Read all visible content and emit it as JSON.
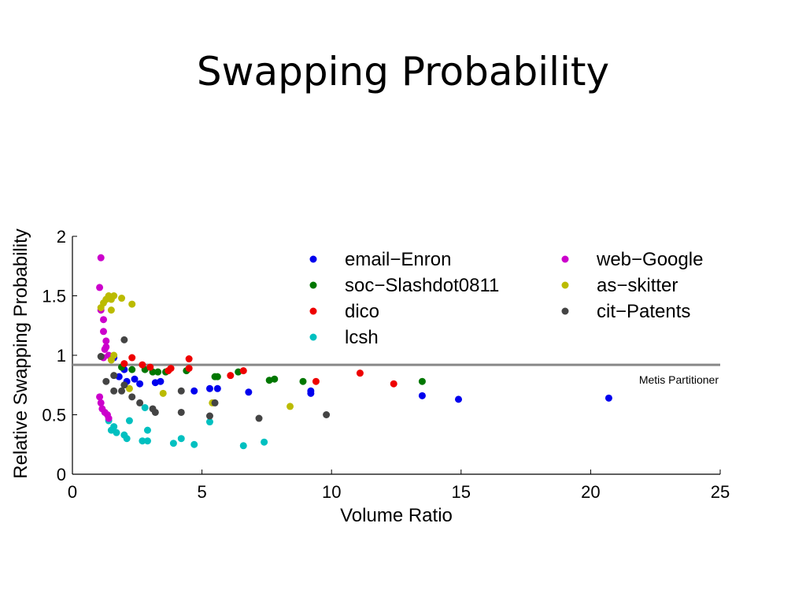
{
  "slide": {
    "title": "Swapping Probability"
  },
  "chart_data": {
    "type": "scatter",
    "title": "",
    "xlabel": "Volume Ratio",
    "ylabel": "Relative Swapping Probability",
    "xlim": [
      0,
      25
    ],
    "ylim": [
      0,
      2
    ],
    "xticks": [
      "0",
      "5",
      "10",
      "15",
      "20",
      "25"
    ],
    "yticks": [
      "0",
      "0.5",
      "1",
      "1.5",
      "2"
    ],
    "grid": false,
    "legend_position": "top-right",
    "reference_line": {
      "y": 0.92,
      "label": "Metis Partitioner",
      "color": "#888888"
    },
    "series": [
      {
        "name": "email−Enron",
        "color": "#0000ee",
        "points": [
          [
            1.6,
            0.98
          ],
          [
            1.8,
            0.82
          ],
          [
            2.0,
            0.88
          ],
          [
            2.1,
            0.78
          ],
          [
            2.4,
            0.8
          ],
          [
            2.6,
            0.76
          ],
          [
            3.2,
            0.77
          ],
          [
            3.4,
            0.78
          ],
          [
            4.7,
            0.7
          ],
          [
            5.3,
            0.72
          ],
          [
            5.6,
            0.72
          ],
          [
            6.8,
            0.69
          ],
          [
            9.2,
            0.68
          ],
          [
            9.2,
            0.7
          ],
          [
            13.5,
            0.66
          ],
          [
            14.9,
            0.63
          ],
          [
            20.7,
            0.64
          ]
        ]
      },
      {
        "name": "soc−Slashdot0811",
        "color": "#007700",
        "points": [
          [
            1.9,
            0.9
          ],
          [
            2.3,
            0.88
          ],
          [
            2.8,
            0.88
          ],
          [
            3.1,
            0.86
          ],
          [
            3.3,
            0.86
          ],
          [
            3.6,
            0.86
          ],
          [
            4.4,
            0.87
          ],
          [
            5.5,
            0.82
          ],
          [
            5.6,
            0.82
          ],
          [
            6.4,
            0.86
          ],
          [
            7.6,
            0.79
          ],
          [
            7.8,
            0.8
          ],
          [
            8.9,
            0.78
          ],
          [
            13.5,
            0.78
          ]
        ]
      },
      {
        "name": "dico",
        "color": "#ee0000",
        "points": [
          [
            2.0,
            0.93
          ],
          [
            2.3,
            0.98
          ],
          [
            2.7,
            0.92
          ],
          [
            3.0,
            0.9
          ],
          [
            3.7,
            0.87
          ],
          [
            3.8,
            0.89
          ],
          [
            4.5,
            0.97
          ],
          [
            4.5,
            0.89
          ],
          [
            6.1,
            0.83
          ],
          [
            6.6,
            0.87
          ],
          [
            9.4,
            0.78
          ],
          [
            11.1,
            0.85
          ],
          [
            12.4,
            0.76
          ]
        ]
      },
      {
        "name": "lcsh",
        "color": "#00c0c0",
        "points": [
          [
            1.4,
            0.45
          ],
          [
            1.5,
            0.37
          ],
          [
            1.6,
            0.4
          ],
          [
            1.7,
            0.35
          ],
          [
            2.0,
            0.33
          ],
          [
            2.1,
            0.3
          ],
          [
            2.2,
            0.45
          ],
          [
            2.7,
            0.28
          ],
          [
            2.8,
            0.56
          ],
          [
            2.9,
            0.28
          ],
          [
            2.9,
            0.37
          ],
          [
            3.9,
            0.26
          ],
          [
            4.2,
            0.3
          ],
          [
            4.7,
            0.25
          ],
          [
            5.3,
            0.44
          ],
          [
            6.6,
            0.24
          ],
          [
            7.4,
            0.27
          ]
        ]
      },
      {
        "name": "web−Google",
        "color": "#cc00cc",
        "points": [
          [
            1.1,
            1.82
          ],
          [
            1.05,
            1.57
          ],
          [
            1.1,
            1.38
          ],
          [
            1.2,
            1.3
          ],
          [
            1.2,
            1.2
          ],
          [
            1.3,
            1.12
          ],
          [
            1.3,
            1.07
          ],
          [
            1.25,
            1.05
          ],
          [
            1.2,
            0.98
          ],
          [
            1.4,
            1.0
          ],
          [
            1.5,
            0.97
          ],
          [
            1.05,
            0.65
          ],
          [
            1.1,
            0.6
          ],
          [
            1.15,
            0.55
          ],
          [
            1.25,
            0.52
          ],
          [
            1.35,
            0.5
          ],
          [
            1.4,
            0.47
          ]
        ]
      },
      {
        "name": "as−skitter",
        "color": "#bbbb00",
        "points": [
          [
            1.1,
            1.4
          ],
          [
            1.2,
            1.44
          ],
          [
            1.3,
            1.47
          ],
          [
            1.4,
            1.5
          ],
          [
            1.5,
            1.47
          ],
          [
            1.6,
            1.5
          ],
          [
            1.9,
            1.48
          ],
          [
            1.5,
            1.38
          ],
          [
            2.3,
            1.43
          ],
          [
            1.6,
            1.0
          ],
          [
            1.5,
            0.96
          ],
          [
            2.2,
            0.72
          ],
          [
            3.5,
            0.68
          ],
          [
            5.4,
            0.6
          ],
          [
            8.4,
            0.57
          ]
        ]
      },
      {
        "name": "cit−Patents",
        "color": "#444444",
        "points": [
          [
            1.1,
            0.99
          ],
          [
            1.3,
            0.78
          ],
          [
            1.6,
            0.83
          ],
          [
            1.6,
            0.7
          ],
          [
            1.9,
            0.7
          ],
          [
            2.0,
            0.75
          ],
          [
            2.0,
            1.13
          ],
          [
            2.3,
            0.65
          ],
          [
            2.6,
            0.6
          ],
          [
            3.1,
            0.55
          ],
          [
            3.2,
            0.52
          ],
          [
            4.2,
            0.7
          ],
          [
            4.2,
            0.52
          ],
          [
            5.3,
            0.49
          ],
          [
            5.5,
            0.6
          ],
          [
            7.2,
            0.47
          ],
          [
            9.8,
            0.5
          ]
        ]
      }
    ]
  }
}
